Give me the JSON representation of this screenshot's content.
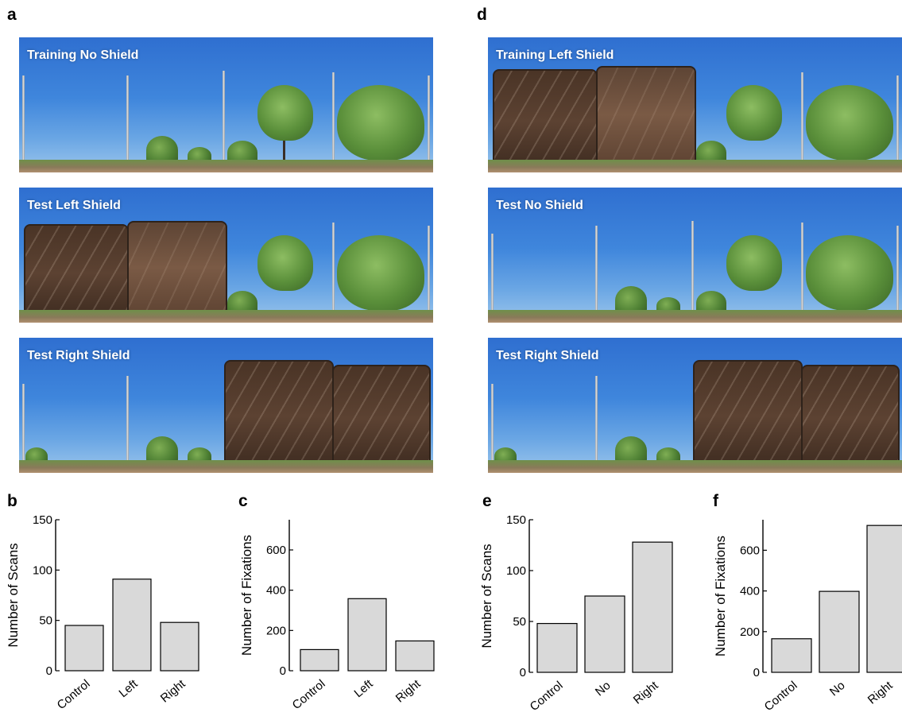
{
  "panel_letters": [
    "a",
    "b",
    "c",
    "d",
    "e",
    "f"
  ],
  "photo_labels": {
    "a": [
      "Training No Shield",
      "Test Left Shield",
      "Test Right Shield"
    ],
    "d": [
      "Training Left Shield",
      "Test No Shield",
      "Test Right Shield"
    ]
  },
  "colors": {
    "bar_fill": "#d9d9d9",
    "bar_stroke": "#000000",
    "photo_label": "#ffffff"
  },
  "chart_data": [
    {
      "panel": "b",
      "type": "bar",
      "categories": [
        "Control",
        "Left",
        "Right"
      ],
      "values": [
        45,
        91,
        48
      ],
      "ylabel": "Number of Scans",
      "ylim": [
        0,
        150
      ],
      "yticks": [
        "0",
        "50",
        "100",
        "150"
      ]
    },
    {
      "panel": "c",
      "type": "bar",
      "categories": [
        "Control",
        "Left",
        "Right"
      ],
      "values": [
        105,
        358,
        148
      ],
      "ylabel": "Number of Fixations",
      "ylim": [
        0,
        750
      ],
      "yticks": [
        "0",
        "200",
        "400",
        "600"
      ]
    },
    {
      "panel": "e",
      "type": "bar",
      "categories": [
        "Control",
        "No",
        "Right"
      ],
      "values": [
        48,
        75,
        128
      ],
      "ylabel": "Number of Scans",
      "ylim": [
        0,
        150
      ],
      "yticks": [
        "0",
        "50",
        "100",
        "150"
      ]
    },
    {
      "panel": "f",
      "type": "bar",
      "categories": [
        "Control",
        "No",
        "Right"
      ],
      "values": [
        165,
        398,
        722
      ],
      "ylabel": "Number of Fixations",
      "ylim": [
        0,
        750
      ],
      "yticks": [
        "0",
        "200",
        "400",
        "600"
      ]
    }
  ]
}
